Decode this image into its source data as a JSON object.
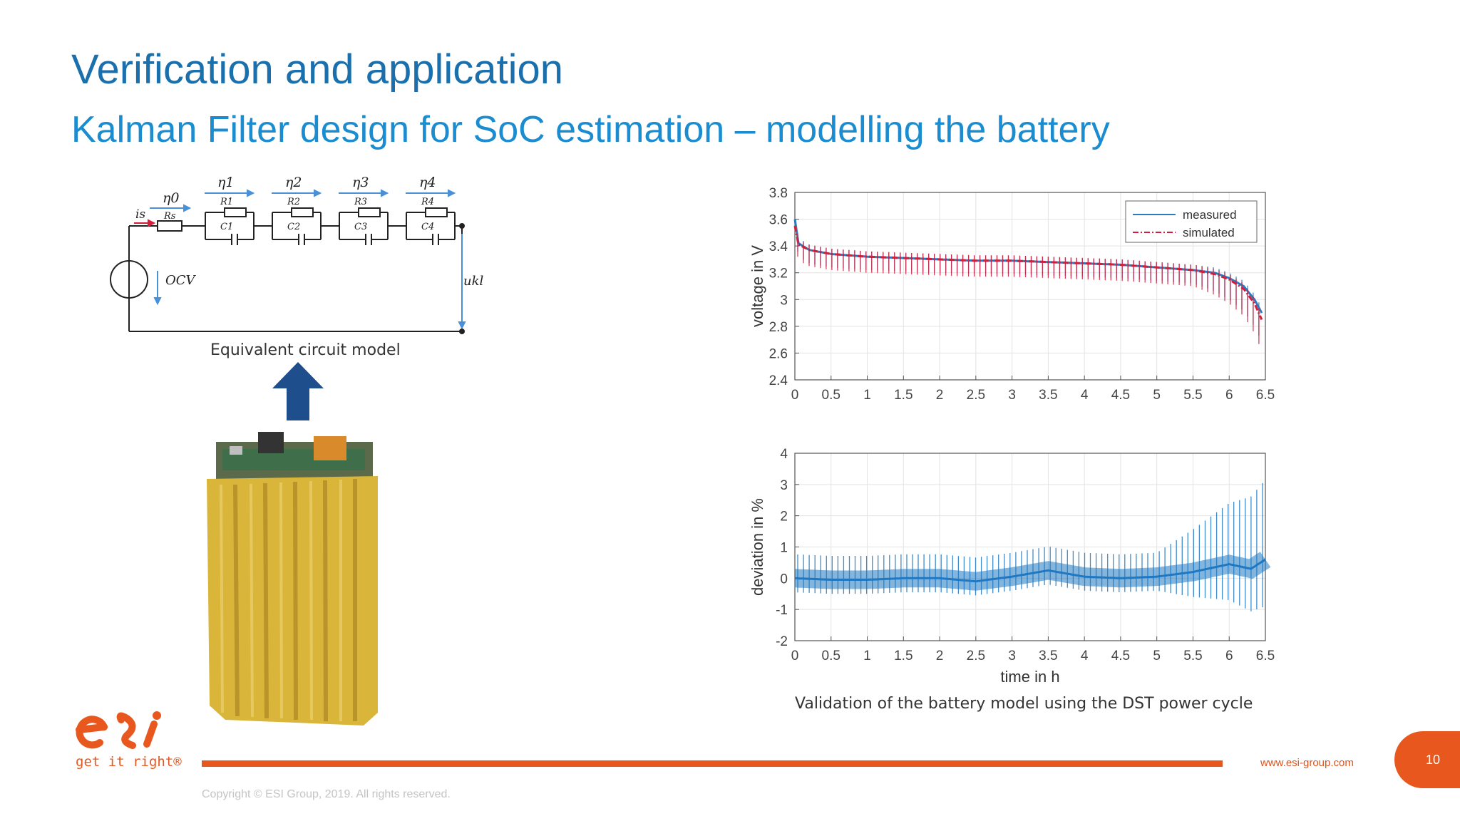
{
  "slide": {
    "title": "Verification and application",
    "subtitle": "Kalman Filter design for SoC estimation – modelling the battery",
    "page_number": "10"
  },
  "circuit": {
    "caption": "Equivalent circuit model",
    "labels": [
      "η1",
      "η2",
      "η3",
      "η4",
      "η0",
      "R1",
      "R2",
      "R3",
      "R4",
      "Rs",
      "C1",
      "C2",
      "C3",
      "C4",
      "is",
      "OCV",
      "ukl"
    ]
  },
  "charts_caption": "Validation of the battery model using the DST power cycle",
  "footer": {
    "logo_tagline": "get it right®",
    "url": "www.esi-group.com",
    "copyright": "Copyright © ESI Group, 2019. All rights reserved."
  },
  "colors": {
    "title": "#1a6fad",
    "subtitle": "#1a8ccf",
    "accent": "#e8581e",
    "measured": "#2b7bbf",
    "simulated": "#d21e3c",
    "deviation": "#1f78c1",
    "arrow": "#1f4e8c",
    "battery": "#d9b53a"
  },
  "chart_data": [
    {
      "type": "line",
      "title": "",
      "xlabel": "",
      "ylabel": "voltage in V",
      "xlim": [
        0,
        6.5
      ],
      "ylim": [
        2.4,
        3.8
      ],
      "x_ticks": [
        "0",
        "0.5",
        "1",
        "1.5",
        "2",
        "2.5",
        "3",
        "3.5",
        "4",
        "4.5",
        "5",
        "5.5",
        "6",
        "6.5"
      ],
      "y_ticks": [
        "3.8",
        "3.6",
        "3.4",
        "3.2",
        "3",
        "2.8",
        "2.6",
        "2.4"
      ],
      "grid": true,
      "legend": "top-right",
      "series": [
        {
          "name": "measured",
          "x": [
            0,
            0.05,
            0.2,
            0.5,
            1,
            1.5,
            2,
            2.5,
            3,
            3.5,
            4,
            4.5,
            5,
            5.5,
            5.8,
            6,
            6.2,
            6.35,
            6.45
          ],
          "y": [
            3.6,
            3.42,
            3.37,
            3.34,
            3.32,
            3.31,
            3.3,
            3.29,
            3.29,
            3.28,
            3.27,
            3.26,
            3.24,
            3.22,
            3.2,
            3.16,
            3.1,
            3.0,
            2.9
          ]
        },
        {
          "name": "simulated",
          "x": [
            0,
            0.05,
            0.2,
            0.5,
            1,
            1.5,
            2,
            2.5,
            3,
            3.5,
            4,
            4.5,
            5,
            5.5,
            5.8,
            6,
            6.2,
            6.35,
            6.45
          ],
          "y": [
            3.55,
            3.41,
            3.37,
            3.34,
            3.32,
            3.31,
            3.3,
            3.29,
            3.29,
            3.28,
            3.27,
            3.26,
            3.24,
            3.22,
            3.19,
            3.15,
            3.08,
            2.97,
            2.85
          ]
        }
      ]
    },
    {
      "type": "line",
      "title": "",
      "xlabel": "time in h",
      "ylabel": "deviation in %",
      "xlim": [
        0,
        6.5
      ],
      "ylim": [
        -2,
        4
      ],
      "x_ticks": [
        "0",
        "0.5",
        "1",
        "1.5",
        "2",
        "2.5",
        "3",
        "3.5",
        "4",
        "4.5",
        "5",
        "5.5",
        "6",
        "6.5"
      ],
      "y_ticks": [
        "4",
        "3",
        "2",
        "1",
        "0",
        "-1",
        "-2"
      ],
      "grid": true,
      "series": [
        {
          "x": [
            0,
            0.5,
            1,
            1.5,
            2,
            2.5,
            3,
            3.5,
            4,
            4.5,
            5,
            5.5,
            6,
            6.3,
            6.5
          ],
          "y": [
            0,
            -0.05,
            -0.05,
            0,
            0,
            -0.1,
            0.05,
            0.25,
            0.05,
            0,
            0.05,
            0.2,
            0.45,
            0.3,
            0.6
          ]
        }
      ]
    }
  ]
}
